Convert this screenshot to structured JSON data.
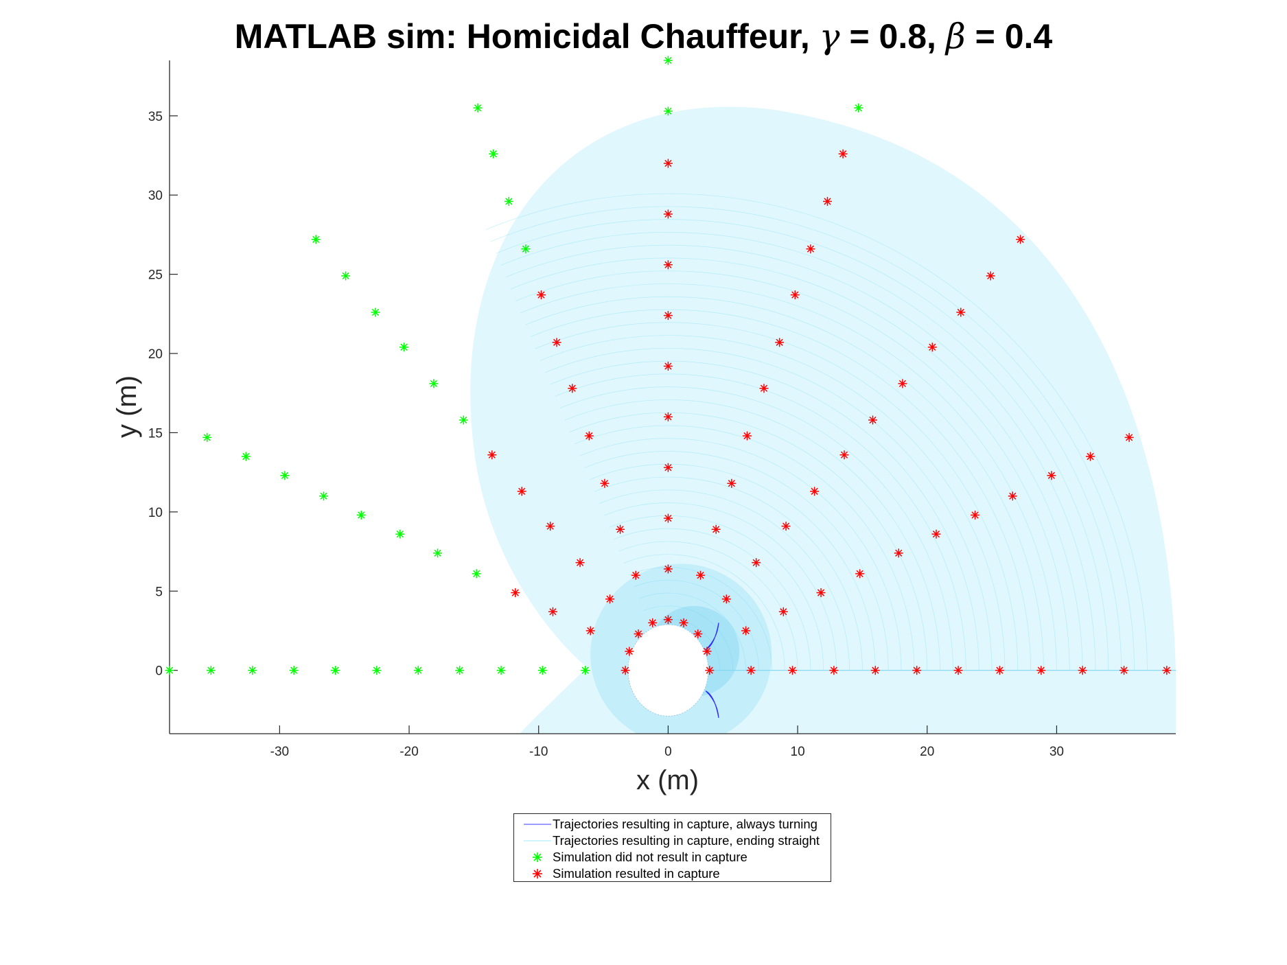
{
  "chart_data": {
    "type": "scatter",
    "title": {
      "prefix": "MATLAB sim: Homicidal Chauffeur, ",
      "gamma_symbol": "γ",
      "gamma_text": " = 0.8, ",
      "beta_symbol": "β",
      "beta_text": " = 0.4"
    },
    "xlabel": "x (m)",
    "ylabel": "y (m)",
    "xlim": [
      -38.5,
      39.2
    ],
    "ylim": [
      -4,
      38.5
    ],
    "xticks": [
      -30,
      -20,
      -10,
      0,
      10,
      20,
      30
    ],
    "yticks": [
      0,
      5,
      10,
      15,
      20,
      25,
      30,
      35
    ],
    "grid": false,
    "box": false,
    "legend": {
      "placement": "below-plot",
      "entries": [
        {
          "label": "Trajectories resulting in capture, always turning",
          "style": "line",
          "color": "#3b3bff"
        },
        {
          "label": "Trajectories resulting in capture, ending straight",
          "style": "line",
          "color": "#7fe3f5"
        },
        {
          "label": "Simulation did not result in capture",
          "style": "asterisk",
          "color": "#00ff00"
        },
        {
          "label": "Simulation resulted in capture",
          "style": "asterisk",
          "color": "#ff0000"
        }
      ]
    },
    "colors": {
      "no_capture": "#00ff00",
      "capture": "#ff0000",
      "traj_straight": "#8fe3f7",
      "traj_turning": "#2d2dff",
      "axis": "#262626"
    },
    "capture_circle": {
      "center": [
        0,
        0
      ],
      "radius": 3.1
    },
    "series": [
      {
        "name": "Simulation did not result in capture",
        "color": "#00ff00",
        "points": [
          [
            -38.5,
            0
          ],
          [
            -35.3,
            0
          ],
          [
            -32.1,
            0
          ],
          [
            -28.9,
            0
          ],
          [
            -25.7,
            0
          ],
          [
            -22.5,
            0
          ],
          [
            -19.3,
            0
          ],
          [
            -16.1,
            0
          ],
          [
            -12.9,
            0
          ],
          [
            -9.7,
            0
          ],
          [
            -6.4,
            0
          ],
          [
            -35.6,
            14.7
          ],
          [
            -32.6,
            13.5
          ],
          [
            -29.6,
            12.3
          ],
          [
            -26.6,
            11.0
          ],
          [
            -23.7,
            9.8
          ],
          [
            -20.7,
            8.6
          ],
          [
            -17.8,
            7.4
          ],
          [
            -14.8,
            6.1
          ],
          [
            -27.2,
            27.2
          ],
          [
            -24.9,
            24.9
          ],
          [
            -22.6,
            22.6
          ],
          [
            -20.4,
            20.4
          ],
          [
            -18.1,
            18.1
          ],
          [
            -15.8,
            15.8
          ],
          [
            -14.7,
            35.5
          ],
          [
            -13.5,
            32.6
          ],
          [
            -12.3,
            29.6
          ],
          [
            -11.0,
            26.6
          ],
          [
            0,
            38.5
          ],
          [
            0,
            35.3
          ],
          [
            14.7,
            35.5
          ]
        ]
      },
      {
        "name": "Simulation resulted in capture",
        "color": "#ff0000",
        "points": [
          [
            -3.3,
            0
          ],
          [
            3.2,
            0
          ],
          [
            6.4,
            0
          ],
          [
            9.6,
            0
          ],
          [
            12.8,
            0
          ],
          [
            16.0,
            0
          ],
          [
            19.2,
            0
          ],
          [
            22.4,
            0
          ],
          [
            25.6,
            0
          ],
          [
            28.8,
            0
          ],
          [
            32.0,
            0
          ],
          [
            35.2,
            0
          ],
          [
            38.5,
            0
          ],
          [
            0,
            3.2
          ],
          [
            0,
            6.4
          ],
          [
            0,
            9.6
          ],
          [
            0,
            12.8
          ],
          [
            0,
            16.0
          ],
          [
            0,
            19.2
          ],
          [
            0,
            22.4
          ],
          [
            0,
            25.6
          ],
          [
            0,
            28.8
          ],
          [
            0,
            32.0
          ],
          [
            -3.0,
            1.2
          ],
          [
            -2.3,
            2.3
          ],
          [
            -1.2,
            3.0
          ],
          [
            1.2,
            3.0
          ],
          [
            2.3,
            2.3
          ],
          [
            3.0,
            1.2
          ],
          [
            -6.0,
            2.5
          ],
          [
            -4.5,
            4.5
          ],
          [
            -2.5,
            6.0
          ],
          [
            2.5,
            6.0
          ],
          [
            4.5,
            4.5
          ],
          [
            6.0,
            2.5
          ],
          [
            -8.9,
            3.7
          ],
          [
            -6.8,
            6.8
          ],
          [
            -3.7,
            8.9
          ],
          [
            3.7,
            8.9
          ],
          [
            6.8,
            6.8
          ],
          [
            8.9,
            3.7
          ],
          [
            -11.8,
            4.9
          ],
          [
            -9.1,
            9.1
          ],
          [
            -4.9,
            11.8
          ],
          [
            4.9,
            11.8
          ],
          [
            9.1,
            9.1
          ],
          [
            11.8,
            4.9
          ],
          [
            -13.6,
            13.6
          ],
          [
            -11.3,
            11.3
          ],
          [
            -6.1,
            14.8
          ],
          [
            6.1,
            14.8
          ],
          [
            11.3,
            11.3
          ],
          [
            13.6,
            13.6
          ],
          [
            -7.4,
            17.8
          ],
          [
            7.4,
            17.8
          ],
          [
            -8.6,
            20.7
          ],
          [
            8.6,
            20.7
          ],
          [
            -9.8,
            23.7
          ],
          [
            9.8,
            23.7
          ],
          [
            11.0,
            26.6
          ],
          [
            12.3,
            29.6
          ],
          [
            13.5,
            32.6
          ],
          [
            14.8,
            6.1
          ],
          [
            17.8,
            7.4
          ],
          [
            20.7,
            8.6
          ],
          [
            23.7,
            9.8
          ],
          [
            26.6,
            11.0
          ],
          [
            29.6,
            12.3
          ],
          [
            32.6,
            13.5
          ],
          [
            35.6,
            14.7
          ],
          [
            15.8,
            15.8
          ],
          [
            18.1,
            18.1
          ],
          [
            20.4,
            20.4
          ],
          [
            22.6,
            22.6
          ],
          [
            24.9,
            24.9
          ],
          [
            27.2,
            27.2
          ]
        ]
      }
    ]
  }
}
